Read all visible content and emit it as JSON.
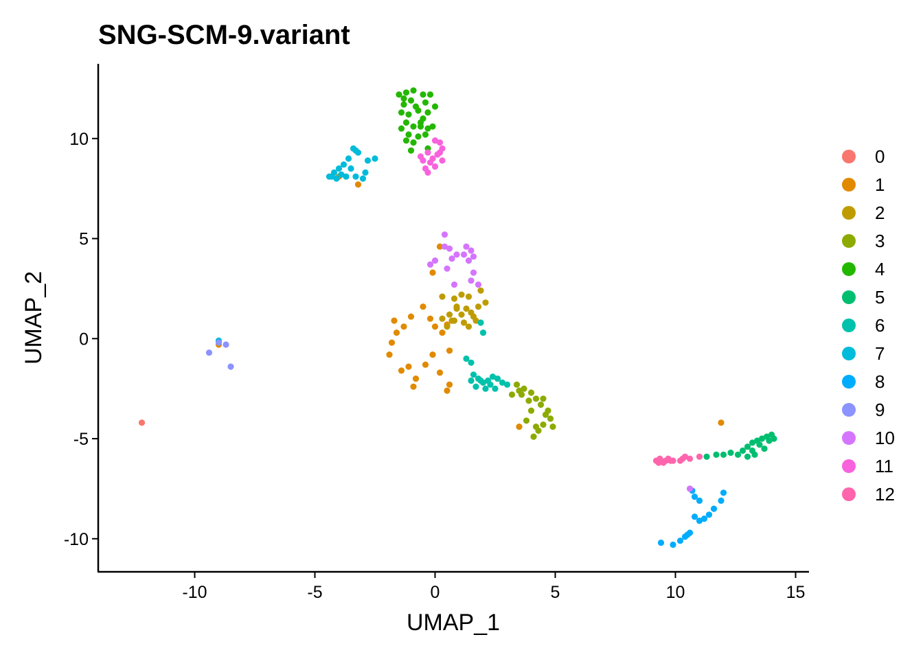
{
  "chart_data": {
    "type": "scatter",
    "title": "SNG-SCM-9.variant",
    "xlabel": "UMAP_1",
    "ylabel": "UMAP_2",
    "xlim": [
      -14,
      15.5
    ],
    "ylim": [
      -11.5,
      13.8
    ],
    "xticks": [
      -10,
      -5,
      0,
      5,
      10,
      15
    ],
    "yticks": [
      -10,
      -5,
      0,
      5,
      10
    ],
    "xtick_labels": [
      "-10",
      "-5",
      "0",
      "5",
      "10",
      "15"
    ],
    "ytick_labels": [
      "-10",
      "-5",
      "0",
      "5",
      "10"
    ],
    "grid": false,
    "legend_position": "right",
    "series": [
      {
        "name": "0",
        "color": "#F8766D",
        "points": [
          [
            -12.2,
            -4.2
          ]
        ]
      },
      {
        "name": "1",
        "color": "#E18A00",
        "points": [
          [
            0.2,
            4.6
          ],
          [
            -0.1,
            3.3
          ],
          [
            -0.5,
            1.6
          ],
          [
            -1.0,
            1.1
          ],
          [
            -1.7,
            0.9
          ],
          [
            -0.2,
            1.0
          ],
          [
            0.0,
            0.6
          ],
          [
            -1.3,
            0.6
          ],
          [
            -1.6,
            0.3
          ],
          [
            -1.8,
            -0.2
          ],
          [
            0.3,
            0.3
          ],
          [
            0.5,
            0.7
          ],
          [
            -0.1,
            -0.8
          ],
          [
            -1.9,
            -0.8
          ],
          [
            -1.1,
            -1.4
          ],
          [
            -0.4,
            -1.3
          ],
          [
            0.6,
            -0.6
          ],
          [
            0.2,
            -1.7
          ],
          [
            -1.4,
            -1.6
          ],
          [
            -0.8,
            -2.0
          ],
          [
            0.6,
            -2.3
          ],
          [
            0.5,
            -2.6
          ],
          [
            -0.9,
            -2.4
          ],
          [
            -4.0,
            8.1
          ],
          [
            -3.2,
            7.7
          ],
          [
            3.5,
            -4.4
          ],
          [
            11.9,
            -4.2
          ],
          [
            -9.0,
            -0.3
          ]
        ]
      },
      {
        "name": "2",
        "color": "#BE9C00",
        "points": [
          [
            0.8,
            2.0
          ],
          [
            1.1,
            2.2
          ],
          [
            1.4,
            2.1
          ],
          [
            0.9,
            1.6
          ],
          [
            1.3,
            1.5
          ],
          [
            1.8,
            1.6
          ],
          [
            0.6,
            1.2
          ],
          [
            1.1,
            1.2
          ],
          [
            1.6,
            1.1
          ],
          [
            0.3,
            1.0
          ],
          [
            0.7,
            0.9
          ],
          [
            1.2,
            0.8
          ],
          [
            1.7,
            0.9
          ],
          [
            0.5,
            0.6
          ],
          [
            0.9,
            1.5
          ],
          [
            1.5,
            1.3
          ],
          [
            2.1,
            1.8
          ],
          [
            0.3,
            2.1
          ],
          [
            1.9,
            2.4
          ],
          [
            0.8,
            0.9
          ],
          [
            1.4,
            0.6
          ]
        ]
      },
      {
        "name": "3",
        "color": "#8CAB00",
        "points": [
          [
            3.4,
            -2.3
          ],
          [
            3.7,
            -2.5
          ],
          [
            4.0,
            -2.7
          ],
          [
            3.6,
            -2.8
          ],
          [
            3.2,
            -2.8
          ],
          [
            4.2,
            -3.0
          ],
          [
            4.4,
            -3.3
          ],
          [
            4.0,
            -3.6
          ],
          [
            4.6,
            -3.8
          ],
          [
            4.8,
            -4.0
          ],
          [
            4.5,
            -4.3
          ],
          [
            4.9,
            -4.4
          ],
          [
            4.3,
            -4.6
          ],
          [
            4.1,
            -4.9
          ],
          [
            3.8,
            -4.1
          ],
          [
            4.7,
            -3.6
          ],
          [
            4.2,
            -4.4
          ],
          [
            3.5,
            -2.6
          ],
          [
            3.9,
            -3.1
          ],
          [
            4.5,
            -3.0
          ]
        ]
      },
      {
        "name": "4",
        "color": "#24B700",
        "points": [
          [
            -1.5,
            12.2
          ],
          [
            -1.2,
            12.3
          ],
          [
            -0.9,
            12.4
          ],
          [
            -0.5,
            12.2
          ],
          [
            -0.2,
            12.2
          ],
          [
            -1.3,
            12.0
          ],
          [
            -1.0,
            11.9
          ],
          [
            -0.8,
            11.6
          ],
          [
            -0.4,
            11.8
          ],
          [
            -1.3,
            11.7
          ],
          [
            0.0,
            11.6
          ],
          [
            -0.7,
            11.4
          ],
          [
            -0.3,
            11.3
          ],
          [
            -1.4,
            11.3
          ],
          [
            -1.1,
            11.2
          ],
          [
            -0.5,
            11.0
          ],
          [
            -1.2,
            10.8
          ],
          [
            -0.9,
            10.6
          ],
          [
            -0.6,
            10.6
          ],
          [
            -0.3,
            10.5
          ],
          [
            -0.1,
            10.6
          ],
          [
            -1.4,
            10.5
          ],
          [
            -1.1,
            10.2
          ],
          [
            -0.7,
            10.1
          ],
          [
            -0.4,
            10.2
          ],
          [
            -1.2,
            9.9
          ],
          [
            -0.9,
            9.8
          ],
          [
            -0.3,
            9.5
          ],
          [
            -1.0,
            9.4
          ],
          [
            -0.6,
            10.8
          ]
        ]
      },
      {
        "name": "5",
        "color": "#00BE70",
        "points": [
          [
            11.3,
            -5.9
          ],
          [
            11.7,
            -5.8
          ],
          [
            12.0,
            -5.8
          ],
          [
            12.3,
            -5.7
          ],
          [
            12.6,
            -5.8
          ],
          [
            12.8,
            -5.6
          ],
          [
            13.0,
            -5.4
          ],
          [
            13.2,
            -5.2
          ],
          [
            13.4,
            -5.1
          ],
          [
            13.6,
            -5.0
          ],
          [
            13.8,
            -4.9
          ],
          [
            14.0,
            -4.8
          ],
          [
            13.9,
            -5.1
          ],
          [
            13.5,
            -5.3
          ],
          [
            13.2,
            -5.6
          ],
          [
            13.7,
            -5.5
          ],
          [
            14.1,
            -5.0
          ],
          [
            13.3,
            -5.8
          ],
          [
            13.0,
            -5.9
          ]
        ]
      },
      {
        "name": "6",
        "color": "#00C1AB",
        "points": [
          [
            1.9,
            0.8
          ],
          [
            2.0,
            0.3
          ],
          [
            1.3,
            -1.0
          ],
          [
            1.5,
            -1.2
          ],
          [
            1.6,
            -1.8
          ],
          [
            1.8,
            -2.0
          ],
          [
            2.0,
            -2.2
          ],
          [
            2.2,
            -2.1
          ],
          [
            2.4,
            -1.9
          ],
          [
            2.6,
            -2.0
          ],
          [
            2.8,
            -2.2
          ],
          [
            3.0,
            -2.3
          ],
          [
            1.7,
            -2.4
          ],
          [
            2.1,
            -2.5
          ],
          [
            2.3,
            -2.3
          ],
          [
            1.5,
            -2.1
          ],
          [
            2.5,
            -2.5
          ],
          [
            1.9,
            -2.1
          ]
        ]
      },
      {
        "name": "7",
        "color": "#00BBDA",
        "points": [
          [
            -3.4,
            9.5
          ],
          [
            -3.3,
            9.4
          ],
          [
            -3.2,
            9.3
          ],
          [
            -3.6,
            9.0
          ],
          [
            -2.5,
            9.0
          ],
          [
            -2.8,
            8.9
          ],
          [
            -3.8,
            8.7
          ],
          [
            -4.0,
            8.5
          ],
          [
            -4.2,
            8.3
          ],
          [
            -3.5,
            8.5
          ],
          [
            -2.9,
            8.3
          ],
          [
            -3.0,
            8.0
          ],
          [
            -3.7,
            8.1
          ],
          [
            -4.3,
            8.1
          ],
          [
            -4.1,
            8.0
          ],
          [
            -3.3,
            8.1
          ],
          [
            -3.9,
            8.2
          ],
          [
            -4.4,
            8.1
          ],
          [
            -9.0,
            -0.1
          ]
        ]
      },
      {
        "name": "8",
        "color": "#00ACFC",
        "points": [
          [
            12.0,
            -7.7
          ],
          [
            11.9,
            -8.1
          ],
          [
            11.6,
            -8.5
          ],
          [
            11.4,
            -8.8
          ],
          [
            11.2,
            -9.0
          ],
          [
            11.0,
            -9.1
          ],
          [
            10.8,
            -8.9
          ],
          [
            10.6,
            -9.7
          ],
          [
            10.4,
            -9.9
          ],
          [
            10.2,
            -10.1
          ],
          [
            9.9,
            -10.3
          ],
          [
            9.4,
            -10.2
          ],
          [
            10.8,
            -7.9
          ],
          [
            11.0,
            -8.1
          ],
          [
            10.7,
            -7.6
          ],
          [
            10.5,
            -9.8
          ]
        ]
      },
      {
        "name": "9",
        "color": "#8B93FF",
        "points": [
          [
            -9.4,
            -0.7
          ],
          [
            -8.7,
            -0.3
          ],
          [
            -8.5,
            -1.4
          ],
          [
            -9.0,
            -0.2
          ]
        ]
      },
      {
        "name": "10",
        "color": "#D575FE",
        "points": [
          [
            0.4,
            5.2
          ],
          [
            0.4,
            4.6
          ],
          [
            0.6,
            4.5
          ],
          [
            0.9,
            4.2
          ],
          [
            0.7,
            4.0
          ],
          [
            1.3,
            4.6
          ],
          [
            1.5,
            4.4
          ],
          [
            1.6,
            4.1
          ],
          [
            1.2,
            4.2
          ],
          [
            1.4,
            3.9
          ],
          [
            -0.2,
            3.7
          ],
          [
            0.0,
            3.9
          ],
          [
            0.5,
            3.5
          ],
          [
            1.5,
            2.9
          ],
          [
            1.8,
            2.7
          ],
          [
            1.6,
            3.3
          ],
          [
            0.8,
            2.7
          ],
          [
            10.6,
            -7.5
          ]
        ]
      },
      {
        "name": "11",
        "color": "#F962DD",
        "points": [
          [
            0.0,
            9.9
          ],
          [
            0.2,
            9.8
          ],
          [
            0.3,
            9.5
          ],
          [
            0.1,
            9.2
          ],
          [
            -0.1,
            9.0
          ],
          [
            0.3,
            8.9
          ],
          [
            0.0,
            8.6
          ],
          [
            -0.3,
            8.3
          ],
          [
            -0.2,
            8.8
          ],
          [
            -0.5,
            8.9
          ],
          [
            -0.6,
            9.1
          ],
          [
            0.2,
            9.3
          ],
          [
            -0.4,
            8.5
          ],
          [
            -0.3,
            9.3
          ]
        ]
      },
      {
        "name": "12",
        "color": "#FF65AC",
        "points": [
          [
            9.2,
            -6.1
          ],
          [
            9.3,
            -6.2
          ],
          [
            9.4,
            -6.1
          ],
          [
            9.5,
            -6.2
          ],
          [
            9.6,
            -6.1
          ],
          [
            9.7,
            -6.0
          ],
          [
            9.8,
            -6.1
          ],
          [
            9.9,
            -6.1
          ],
          [
            10.3,
            -6.0
          ],
          [
            10.4,
            -5.9
          ],
          [
            10.6,
            -6.0
          ],
          [
            10.2,
            -6.1
          ],
          [
            11.0,
            -5.9
          ],
          [
            9.35,
            -6.0
          ]
        ]
      }
    ]
  }
}
